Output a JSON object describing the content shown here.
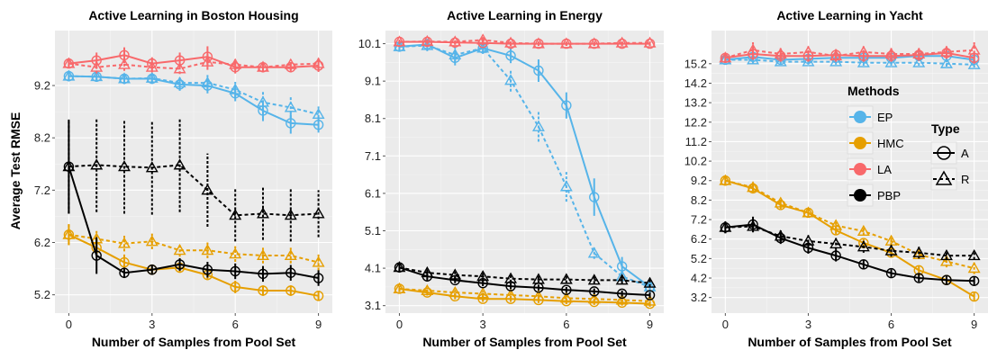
{
  "figure": {
    "ylabel": "Average Test RMSE",
    "xlabel": "Number of Samples from Pool Set"
  },
  "colors": {
    "EP": "#56B4E9",
    "HMC": "#E69F00",
    "LA": "#F8696B",
    "PBP": "#000000",
    "panel_bg": "#EBEBEB",
    "grid": "#FFFFFF"
  },
  "legend": {
    "methods_title": "Methods",
    "methods": [
      {
        "name": "EP",
        "color": "#56B4E9"
      },
      {
        "name": "HMC",
        "color": "#E69F00"
      },
      {
        "name": "LA",
        "color": "#F8696B"
      },
      {
        "name": "PBP",
        "color": "#000000"
      }
    ],
    "type_title": "Type",
    "types": [
      {
        "name": "A",
        "marker": "circle",
        "line": "solid"
      },
      {
        "name": "R",
        "marker": "triangle",
        "line": "dashed"
      }
    ],
    "placement": "inside right panel, top-right"
  },
  "chart_data": [
    {
      "type": "line",
      "title": "Active Learning in Boston Housing",
      "xlabel": "Number of Samples from Pool Set",
      "ylabel": "Average Test RMSE",
      "xticks": [
        0,
        3,
        6,
        9
      ],
      "yticks": [
        5.2,
        6.2,
        7.2,
        8.2,
        9.2
      ],
      "xlim": [
        -0.5,
        9.5
      ],
      "ylim": [
        4.85,
        10.25
      ],
      "series": [
        {
          "method": "EP",
          "type": "A",
          "y": [
            9.38,
            9.37,
            9.33,
            9.33,
            9.22,
            9.2,
            9.05,
            8.72,
            8.48,
            8.45
          ],
          "err": [
            0.1,
            0.1,
            0.1,
            0.1,
            0.12,
            0.15,
            0.15,
            0.2,
            0.2,
            0.15
          ]
        },
        {
          "method": "EP",
          "type": "R",
          "y": [
            9.38,
            9.37,
            9.33,
            9.34,
            9.25,
            9.25,
            9.12,
            8.88,
            8.78,
            8.65
          ],
          "err": [
            0.1,
            0.1,
            0.1,
            0.1,
            0.12,
            0.15,
            0.15,
            0.2,
            0.2,
            0.15
          ]
        },
        {
          "method": "HMC",
          "type": "A",
          "y": [
            6.35,
            6.1,
            5.82,
            5.68,
            5.72,
            5.58,
            5.35,
            5.28,
            5.28,
            5.18
          ],
          "err": [
            0.2,
            0.15,
            0.15,
            0.1,
            0.1,
            0.1,
            0.12,
            0.1,
            0.1,
            0.1
          ]
        },
        {
          "method": "HMC",
          "type": "R",
          "y": [
            6.35,
            6.27,
            6.18,
            6.22,
            6.05,
            6.05,
            5.98,
            5.95,
            5.95,
            5.82
          ],
          "err": [
            0.2,
            0.15,
            0.15,
            0.15,
            0.12,
            0.15,
            0.15,
            0.15,
            0.15,
            0.15
          ]
        },
        {
          "method": "LA",
          "type": "A",
          "y": [
            9.62,
            9.68,
            9.78,
            9.62,
            9.68,
            9.75,
            9.55,
            9.55,
            9.55,
            9.58
          ],
          "err": [
            0.08,
            0.15,
            0.15,
            0.12,
            0.15,
            0.2,
            0.12,
            0.1,
            0.1,
            0.12
          ]
        },
        {
          "method": "LA",
          "type": "R",
          "y": [
            9.62,
            9.55,
            9.6,
            9.55,
            9.52,
            9.65,
            9.6,
            9.55,
            9.6,
            9.62
          ],
          "err": [
            0.08,
            0.12,
            0.12,
            0.1,
            0.1,
            0.15,
            0.1,
            0.1,
            0.1,
            0.1
          ]
        },
        {
          "method": "PBP",
          "type": "A",
          "y": [
            7.65,
            5.95,
            5.62,
            5.68,
            5.78,
            5.68,
            5.65,
            5.6,
            5.62,
            5.52
          ],
          "err": [
            0.9,
            0.35,
            0.1,
            0.1,
            0.12,
            0.15,
            0.15,
            0.15,
            0.15,
            0.15
          ]
        },
        {
          "method": "PBP",
          "type": "R",
          "y": [
            7.65,
            7.68,
            7.65,
            7.63,
            7.68,
            7.2,
            6.72,
            6.75,
            6.72,
            6.75
          ],
          "err": [
            0.9,
            0.9,
            0.9,
            0.9,
            0.9,
            0.7,
            0.5,
            0.5,
            0.5,
            0.45
          ]
        }
      ]
    },
    {
      "type": "line",
      "title": "Active Learning in Energy",
      "xlabel": "Number of Samples from Pool Set",
      "xticks": [
        0,
        3,
        6,
        9
      ],
      "yticks": [
        3.1,
        4.1,
        5.1,
        6.1,
        7.1,
        8.1,
        9.1,
        10.1
      ],
      "xlim": [
        -0.5,
        9.5
      ],
      "ylim": [
        2.9,
        10.45
      ],
      "series": [
        {
          "method": "EP",
          "type": "A",
          "y": [
            10.02,
            10.08,
            9.72,
            9.98,
            9.78,
            9.38,
            8.45,
            6.0,
            4.15,
            3.6
          ],
          "err": [
            0.1,
            0.15,
            0.2,
            0.15,
            0.2,
            0.3,
            0.35,
            0.5,
            0.25,
            0.1
          ]
        },
        {
          "method": "EP",
          "type": "R",
          "y": [
            10.02,
            10.05,
            9.8,
            9.98,
            9.12,
            7.88,
            6.28,
            4.5,
            3.88,
            3.6
          ],
          "err": [
            0.1,
            0.15,
            0.2,
            0.15,
            0.3,
            0.4,
            0.4,
            0.15,
            0.15,
            0.1
          ]
        },
        {
          "method": "HMC",
          "type": "A",
          "y": [
            3.55,
            3.45,
            3.35,
            3.28,
            3.28,
            3.25,
            3.22,
            3.2,
            3.18,
            3.15
          ],
          "err": [
            0.08,
            0.08,
            0.08,
            0.08,
            0.08,
            0.08,
            0.08,
            0.08,
            0.08,
            0.08
          ]
        },
        {
          "method": "HMC",
          "type": "R",
          "y": [
            3.55,
            3.5,
            3.45,
            3.42,
            3.38,
            3.35,
            3.3,
            3.28,
            3.25,
            3.22
          ],
          "err": [
            0.08,
            0.08,
            0.08,
            0.08,
            0.08,
            0.08,
            0.08,
            0.08,
            0.08,
            0.08
          ]
        },
        {
          "method": "LA",
          "type": "A",
          "y": [
            10.15,
            10.15,
            10.13,
            10.12,
            10.1,
            10.1,
            10.1,
            10.1,
            10.1,
            10.1
          ],
          "err": [
            0.06,
            0.06,
            0.06,
            0.06,
            0.06,
            0.06,
            0.06,
            0.06,
            0.06,
            0.06
          ]
        },
        {
          "method": "LA",
          "type": "R",
          "y": [
            10.15,
            10.16,
            10.15,
            10.2,
            10.12,
            10.1,
            10.1,
            10.1,
            10.12,
            10.12
          ],
          "err": [
            0.06,
            0.06,
            0.06,
            0.08,
            0.06,
            0.06,
            0.06,
            0.06,
            0.06,
            0.06
          ]
        },
        {
          "method": "PBP",
          "type": "A",
          "y": [
            4.12,
            3.88,
            3.78,
            3.7,
            3.62,
            3.58,
            3.52,
            3.48,
            3.42,
            3.38
          ],
          "err": [
            0.1,
            0.1,
            0.08,
            0.08,
            0.08,
            0.08,
            0.08,
            0.08,
            0.08,
            0.08
          ]
        },
        {
          "method": "PBP",
          "type": "R",
          "y": [
            4.12,
            3.98,
            3.92,
            3.88,
            3.82,
            3.8,
            3.8,
            3.78,
            3.78,
            3.7
          ],
          "err": [
            0.1,
            0.1,
            0.1,
            0.1,
            0.1,
            0.1,
            0.1,
            0.1,
            0.1,
            0.1
          ]
        }
      ]
    },
    {
      "type": "line",
      "title": "Active Learning in Yacht",
      "xlabel": "Number of Samples from Pool Set",
      "xticks": [
        0,
        3,
        6,
        9
      ],
      "yticks": [
        3.2,
        4.2,
        5.2,
        6.2,
        7.2,
        8.2,
        9.2,
        10.2,
        11.2,
        12.2,
        13.2,
        14.2,
        15.2
      ],
      "xlim": [
        -0.5,
        9.5
      ],
      "ylim": [
        2.4,
        16.9
      ],
      "series": [
        {
          "method": "EP",
          "type": "A",
          "y": [
            15.4,
            15.55,
            15.4,
            15.45,
            15.5,
            15.5,
            15.5,
            15.6,
            15.6,
            15.4
          ],
          "err": [
            0.15,
            0.2,
            0.15,
            0.15,
            0.15,
            0.15,
            0.15,
            0.2,
            0.2,
            0.2
          ]
        },
        {
          "method": "EP",
          "type": "R",
          "y": [
            15.4,
            15.4,
            15.3,
            15.3,
            15.3,
            15.25,
            15.25,
            15.25,
            15.2,
            15.15
          ],
          "err": [
            0.15,
            0.2,
            0.15,
            0.15,
            0.15,
            0.15,
            0.15,
            0.15,
            0.15,
            0.15
          ]
        },
        {
          "method": "HMC",
          "type": "A",
          "y": [
            9.2,
            8.8,
            7.95,
            7.55,
            6.65,
            6.0,
            5.5,
            4.6,
            4.1,
            3.25
          ],
          "err": [
            0.2,
            0.2,
            0.2,
            0.2,
            0.2,
            0.2,
            0.2,
            0.2,
            0.2,
            0.2
          ]
        },
        {
          "method": "HMC",
          "type": "R",
          "y": [
            9.2,
            8.85,
            8.05,
            7.55,
            6.9,
            6.6,
            6.1,
            5.4,
            5.05,
            4.7
          ],
          "err": [
            0.2,
            0.2,
            0.2,
            0.2,
            0.2,
            0.2,
            0.2,
            0.2,
            0.3,
            0.3
          ]
        },
        {
          "method": "LA",
          "type": "A",
          "y": [
            15.5,
            15.7,
            15.6,
            15.6,
            15.65,
            15.6,
            15.6,
            15.65,
            15.75,
            15.5
          ],
          "err": [
            0.2,
            0.3,
            0.3,
            0.3,
            0.3,
            0.3,
            0.3,
            0.3,
            0.3,
            0.3
          ]
        },
        {
          "method": "LA",
          "type": "R",
          "y": [
            15.5,
            15.9,
            15.7,
            15.8,
            15.6,
            15.8,
            15.7,
            15.7,
            15.8,
            15.9
          ],
          "err": [
            0.2,
            0.4,
            0.3,
            0.3,
            0.3,
            0.3,
            0.3,
            0.3,
            0.3,
            0.4
          ]
        },
        {
          "method": "PBP",
          "type": "A",
          "y": [
            6.8,
            6.95,
            6.25,
            5.75,
            5.35,
            4.9,
            4.45,
            4.2,
            4.1,
            4.05
          ],
          "err": [
            0.3,
            0.4,
            0.3,
            0.3,
            0.3,
            0.25,
            0.2,
            0.2,
            0.2,
            0.2
          ]
        },
        {
          "method": "PBP",
          "type": "R",
          "y": [
            6.8,
            6.85,
            6.35,
            6.1,
            5.95,
            5.8,
            5.6,
            5.5,
            5.35,
            5.35
          ],
          "err": [
            0.3,
            0.3,
            0.3,
            0.3,
            0.3,
            0.3,
            0.3,
            0.3,
            0.2,
            0.2
          ]
        }
      ]
    }
  ]
}
